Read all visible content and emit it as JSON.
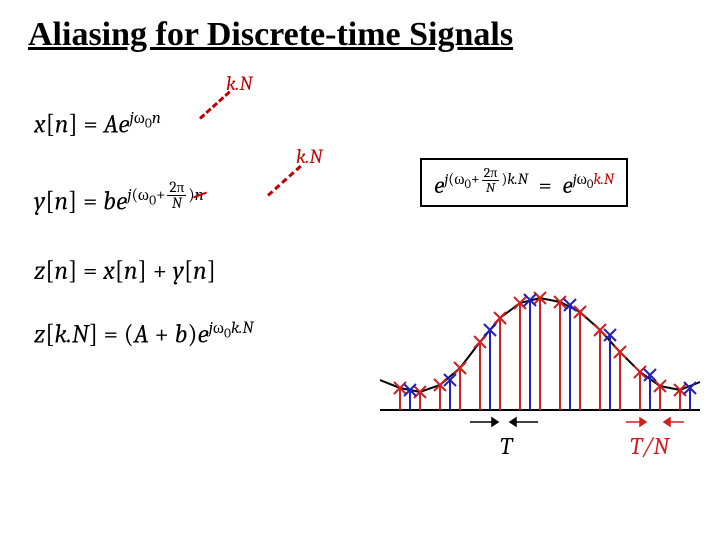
{
  "title": "Aliasing for Discrete-time Signals",
  "annotations": {
    "kN1": "k.N",
    "kN2": "k.N"
  },
  "equations": {
    "x": {
      "lhs": "x[n]",
      "rhs_text": "= Ae^{jω₀n}"
    },
    "y": {
      "lhs": "y[n]",
      "rhs_text": "= be^{j(ω₀+2π/N)n}"
    },
    "z1": {
      "lhs": "z[n]",
      "text": "= x[n] + y[n]"
    },
    "z2": {
      "lhs": "z[k.N]",
      "text": "= (A + b)e^{jω₀k.N}"
    },
    "boxed": {
      "text": "e^{j(ω₀+2π/N)k.N} = e^{jω₀k.N}"
    }
  },
  "graph": {
    "axis_labels": {
      "T": "T",
      "TN": "T/N"
    },
    "colors": {
      "axis": "#000000",
      "curve_black": "#000000",
      "samples_blue": "#2020c0",
      "samples_red": "#d02020",
      "T_label": "#000000",
      "TN_label": "#d02020",
      "arrow": "#d02020",
      "tick_arrow": "#000000"
    },
    "font": {
      "axis_label_size": 22
    },
    "curve": {
      "type": "line",
      "xlim": [
        0,
        320
      ],
      "ylim": [
        -10,
        120
      ],
      "points_x": [
        0,
        20,
        40,
        60,
        80,
        100,
        120,
        140,
        160,
        180,
        200,
        220,
        240,
        260,
        280,
        300,
        320
      ],
      "points_y": [
        30,
        22,
        18,
        25,
        42,
        68,
        92,
        107,
        112,
        108,
        98,
        80,
        58,
        38,
        24,
        20,
        28
      ],
      "stroke_width": 2
    },
    "blue_samples": {
      "type": "stems",
      "x": [
        30,
        70,
        110,
        150,
        190,
        230,
        270,
        310
      ],
      "y": [
        20,
        30,
        80,
        110,
        105,
        75,
        35,
        22
      ],
      "marker": "x",
      "marker_size": 6,
      "stem_width": 2
    },
    "red_samples": {
      "type": "stems",
      "x": [
        20,
        40,
        60,
        80,
        100,
        120,
        140,
        160,
        180,
        200,
        220,
        240,
        260,
        280,
        300
      ],
      "y": [
        22,
        18,
        25,
        42,
        68,
        92,
        107,
        112,
        108,
        98,
        80,
        58,
        38,
        24,
        20
      ],
      "marker": "x",
      "marker_size": 6,
      "stem_width": 2
    }
  },
  "colors": {
    "title": "#000000",
    "annot": "#c00000",
    "dash": "#c00000",
    "box_accent": "#c00000"
  },
  "typography": {
    "title_size": 34,
    "eq_size": 26,
    "annot_size": 20
  }
}
